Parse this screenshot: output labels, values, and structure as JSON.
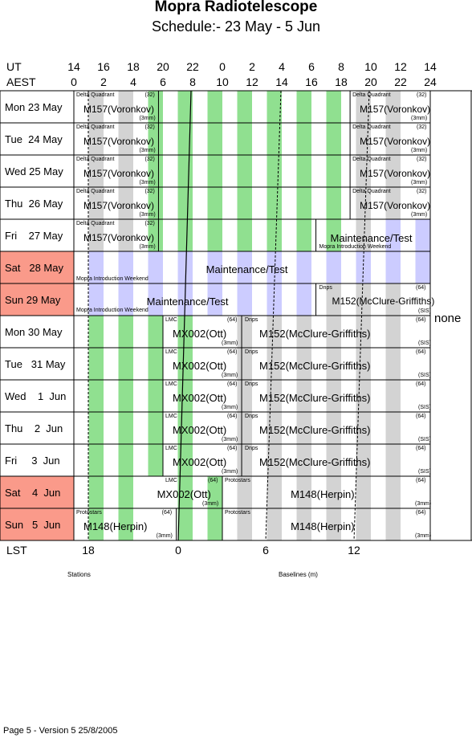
{
  "title": "Mopra Radiotelescope",
  "subtitle": "Schedule:- 23 May - 5  Jun",
  "ut_label": "UT",
  "aest_label": "AEST",
  "lst_label": "LST",
  "ut_ticks": [
    "14",
    "16",
    "18",
    "20",
    "22",
    "0",
    "2",
    "4",
    "6",
    "8",
    "10",
    "12",
    "14"
  ],
  "aest_ticks": [
    "0",
    "2",
    "4",
    "6",
    "8",
    "10",
    "12",
    "14",
    "16",
    "18",
    "20",
    "22",
    "24"
  ],
  "lst_ticks": [
    "18",
    "0",
    "6",
    "12"
  ],
  "days": [
    {
      "label": "Mon 23 May",
      "weekend": false
    },
    {
      "label": "Tue  24 May",
      "weekend": false
    },
    {
      "label": "Wed 25 May",
      "weekend": false
    },
    {
      "label": "Thu  26 May",
      "weekend": false
    },
    {
      "label": "Fri    27 May",
      "weekend": false
    },
    {
      "label": "Sat   28 May",
      "weekend": true
    },
    {
      "label": "Sun 29 May",
      "weekend": true
    },
    {
      "label": "Mon 30 May",
      "weekend": false
    },
    {
      "label": "Tue   31 May",
      "weekend": false
    },
    {
      "label": "Wed    1  Jun",
      "weekend": false
    },
    {
      "label": "Thu    2  Jun",
      "weekend": false
    },
    {
      "label": "Fri     3  Jun",
      "weekend": false
    },
    {
      "label": "Sat    4  Jun",
      "weekend": true
    },
    {
      "label": "Sun   5  Jun",
      "weekend": true
    }
  ],
  "slots": {
    "delta": "Delta Quadrant",
    "n32": "(32)",
    "m157": "M157(Voronkov)",
    "mm3": "(3mm)",
    "maint": "Maintenance/Test",
    "weekend": "Mopra Introduction Weekend",
    "dnps": "Dnps",
    "n64": "(64)",
    "m152": "M152(McClure-Griffiths)",
    "sis": "(SIS)",
    "lmc": "LMC",
    "mx002": "MX002(Ott)",
    "proto": "Protostars",
    "m148": "M148(Herpin)"
  },
  "none_label": "none",
  "stations_label": "Stations",
  "baselines_label": "Baselines (m)",
  "footer": "Page 5 - Version 5  25/8/2005",
  "colors": {
    "green": "#90e090",
    "grey": "#d3d3d3",
    "lavender": "#ccccff",
    "weekend": "#fa9a8a"
  }
}
